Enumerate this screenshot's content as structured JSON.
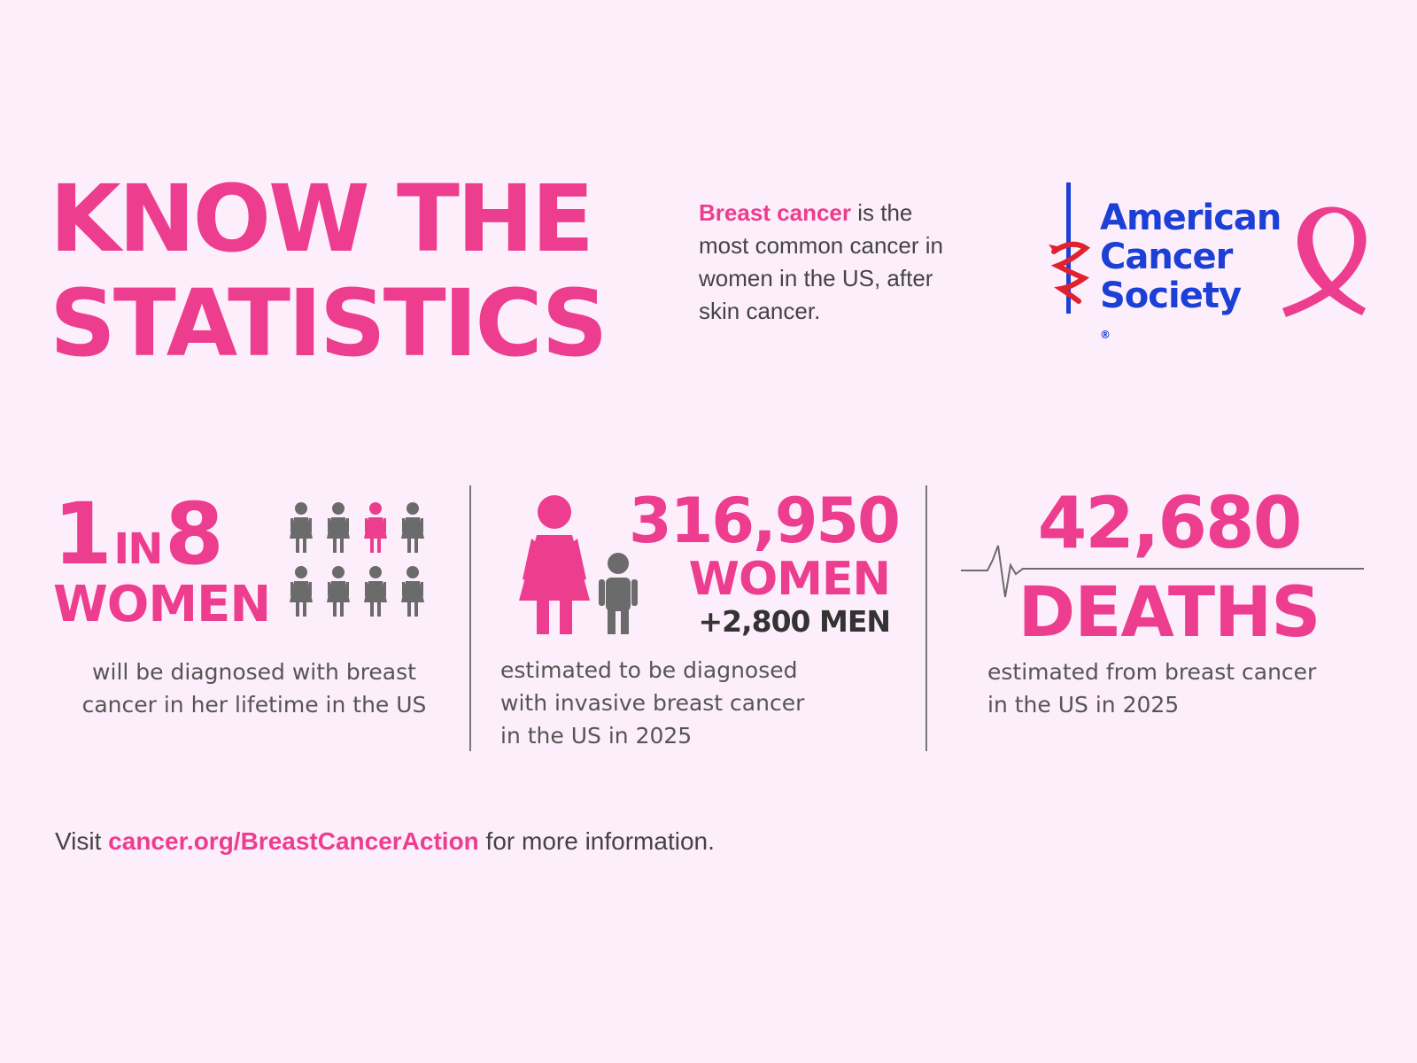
{
  "headline": {
    "line1": "KNOW THE",
    "line2": "STATISTICS"
  },
  "intro": {
    "highlight": "Breast cancer",
    "rest": " is the most common cancer in women in the US, after skin cancer."
  },
  "logo": {
    "line1": "American",
    "line2": "Cancer",
    "line3": "Society",
    "registered": "®",
    "icon": "sword-snake-icon",
    "ribbon": "pink-ribbon-icon"
  },
  "stat1": {
    "number": "1",
    "in": "IN",
    "denominator": "8",
    "unit": "WOMEN",
    "desc_line1": "will be diagnosed with breast",
    "desc_line2": "cancer in her lifetime in the US",
    "icon_highlighted_index": 2
  },
  "stat2": {
    "number": "316,950",
    "unit": "WOMEN",
    "men": "+2,800 MEN",
    "desc_line1": "estimated to be diagnosed",
    "desc_line2": "with invasive breast cancer",
    "desc_line3": "in the US in 2025"
  },
  "stat3": {
    "number": "42,680",
    "unit": "DEATHS",
    "desc_line1": "estimated from breast cancer",
    "desc_line2": "in the US in 2025"
  },
  "footer": {
    "prefix": "Visit ",
    "link": "cancer.org/BreastCancerAction",
    "suffix": " for more information."
  },
  "colors": {
    "pink": "#ed3d8f",
    "blue": "#1c3fd6",
    "gray": "#6b6b6b",
    "bg": "#fdeefb"
  }
}
